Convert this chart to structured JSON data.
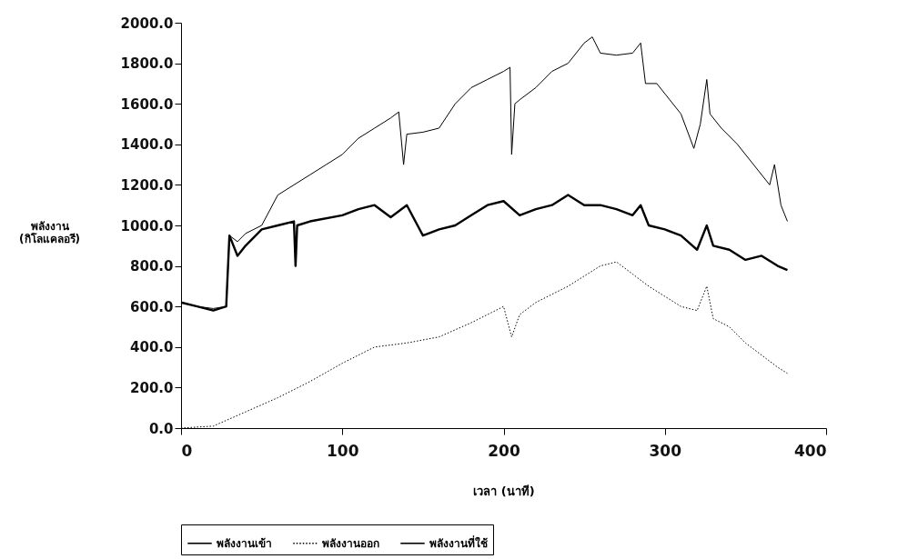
{
  "chart_data": {
    "type": "line",
    "xlabel": "เวลา (นาที)",
    "ylabel": "พลังงาน\n(กิโลแคลอรี)",
    "xlim": [
      0,
      400
    ],
    "xticks": [
      0,
      100,
      200,
      300,
      400
    ],
    "ylim": [
      0,
      2000
    ],
    "yticks": [
      {
        "value": 0,
        "label": "0.0"
      },
      {
        "value": 200,
        "label": "200.0"
      },
      {
        "value": 400,
        "label": "400.0"
      },
      {
        "value": 600,
        "label": "600.0"
      },
      {
        "value": 800,
        "label": "800.0"
      },
      {
        "value": 1000,
        "label": "1000.0"
      },
      {
        "value": 1200,
        "label": "1200.0"
      },
      {
        "value": 1400,
        "label": "1400.0"
      },
      {
        "value": 1600,
        "label": "1600.0"
      },
      {
        "value": 1800,
        "label": "1800.0"
      },
      {
        "value": 2000,
        "label": "2000.0"
      }
    ],
    "grid": false,
    "legend": "bottom",
    "series": [
      {
        "name": "พลังงานเข้า",
        "color": "#000000",
        "line_style": "solid",
        "x": [
          0,
          10,
          20,
          28,
          30,
          35,
          40,
          50,
          60,
          70,
          80,
          90,
          100,
          110,
          120,
          130,
          135,
          138,
          140,
          150,
          160,
          170,
          180,
          190,
          200,
          204,
          205,
          207,
          210,
          220,
          230,
          240,
          250,
          255,
          260,
          270,
          280,
          285,
          288,
          295,
          300,
          310,
          318,
          322,
          326,
          328,
          335,
          345,
          355,
          365,
          368,
          372,
          376
        ],
        "values": [
          620,
          600,
          590,
          600,
          950,
          920,
          960,
          1000,
          1150,
          1200,
          1250,
          1300,
          1350,
          1430,
          1480,
          1530,
          1560,
          1300,
          1450,
          1460,
          1480,
          1600,
          1680,
          1720,
          1760,
          1780,
          1350,
          1600,
          1620,
          1680,
          1760,
          1800,
          1900,
          1930,
          1850,
          1840,
          1850,
          1900,
          1700,
          1700,
          1650,
          1550,
          1380,
          1500,
          1720,
          1550,
          1480,
          1400,
          1300,
          1200,
          1300,
          1100,
          1020
        ]
      },
      {
        "name": "พลังงานออก",
        "color": "#000000",
        "line_style": "dotted",
        "x": [
          0,
          20,
          40,
          60,
          80,
          100,
          120,
          140,
          160,
          180,
          200,
          205,
          210,
          220,
          240,
          250,
          260,
          270,
          280,
          290,
          300,
          310,
          320,
          326,
          330,
          340,
          350,
          360,
          370,
          376
        ],
        "values": [
          0,
          10,
          80,
          150,
          230,
          320,
          400,
          420,
          450,
          520,
          600,
          450,
          560,
          620,
          700,
          750,
          800,
          820,
          760,
          700,
          650,
          600,
          580,
          700,
          540,
          500,
          420,
          360,
          300,
          270
        ]
      },
      {
        "name": "พลังงานที่ใช้",
        "color": "#000000",
        "line_style": "solid",
        "x": [
          0,
          10,
          20,
          28,
          30,
          35,
          40,
          50,
          60,
          70,
          71,
          72,
          80,
          100,
          110,
          120,
          130,
          140,
          150,
          160,
          170,
          180,
          190,
          200,
          210,
          220,
          230,
          240,
          250,
          260,
          270,
          280,
          285,
          290,
          300,
          310,
          320,
          326,
          330,
          340,
          350,
          360,
          370,
          376
        ],
        "values": [
          620,
          600,
          580,
          600,
          950,
          850,
          900,
          980,
          1000,
          1020,
          800,
          1000,
          1020,
          1050,
          1080,
          1100,
          1040,
          1100,
          950,
          980,
          1000,
          1050,
          1100,
          1120,
          1050,
          1080,
          1100,
          1150,
          1100,
          1100,
          1080,
          1050,
          1100,
          1000,
          980,
          950,
          880,
          1000,
          900,
          880,
          830,
          850,
          800,
          780
        ]
      }
    ]
  }
}
